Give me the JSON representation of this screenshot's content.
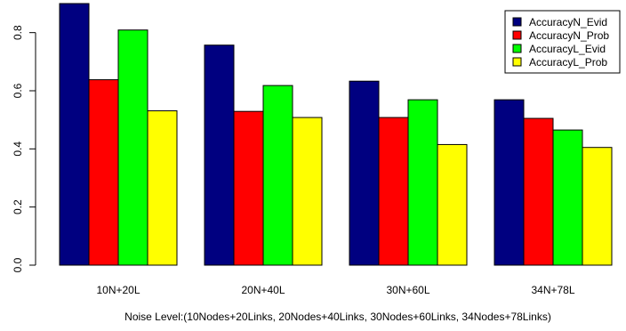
{
  "chart_data": {
    "type": "bar",
    "categories": [
      "10N+20L",
      "20N+40L",
      "30N+60L",
      "34N+78L"
    ],
    "series": [
      {
        "name": "AccuracyN_Evid",
        "color": "#000080",
        "values": [
          0.9,
          0.757,
          0.633,
          0.569
        ]
      },
      {
        "name": "AccuracyN_Prob",
        "color": "#ff0000",
        "values": [
          0.638,
          0.529,
          0.508,
          0.505
        ]
      },
      {
        "name": "AccuracyL_Evid",
        "color": "#00ff00",
        "values": [
          0.809,
          0.618,
          0.569,
          0.465
        ]
      },
      {
        "name": "AccuracyL_Prob",
        "color": "#ffff00",
        "values": [
          0.531,
          0.508,
          0.415,
          0.405
        ]
      }
    ],
    "xlabel": "Noise Level:(10Nodes+20Links, 20Nodes+40Links, 30Nodes+60Links, 34Nodes+78Links)",
    "ylabel": "",
    "yticks": [
      "0.0",
      "0.2",
      "0.4",
      "0.6",
      "0.8"
    ],
    "ytick_values": [
      0.0,
      0.2,
      0.4,
      0.6,
      0.8
    ],
    "ylim": [
      0,
      0.9
    ],
    "grid": false,
    "legend_position": "top-right"
  }
}
